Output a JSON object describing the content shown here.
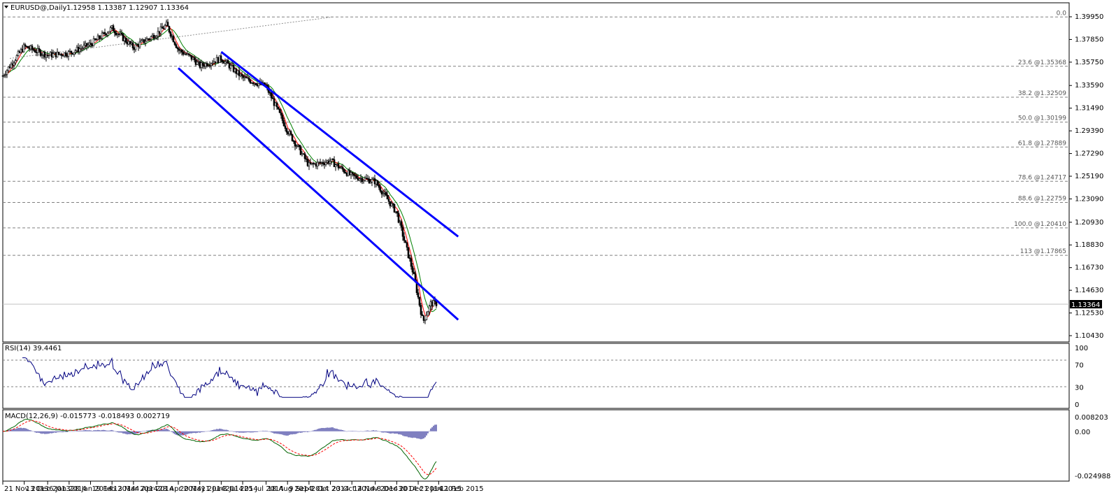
{
  "header": {
    "symbol_label": "EURUSD@,Daily",
    "ohlc": "1.12958 1.13387 1.12907 1.13364"
  },
  "price_panel": {
    "current_price_label": "1.13364",
    "price_axis_labels": [
      "1.39950",
      "1.37850",
      "1.35750",
      "1.33590",
      "1.31490",
      "1.29390",
      "1.27290",
      "1.25190",
      "1.23090",
      "1.20930",
      "1.18830",
      "1.16730",
      "1.14630",
      "1.12530",
      "1.10430"
    ]
  },
  "fibonacci_levels": [
    {
      "ratio": "0.0",
      "price": "",
      "label": "0.0"
    },
    {
      "ratio": "23.6",
      "price": "1.35368",
      "label": "23.6    @1.35368"
    },
    {
      "ratio": "38.2",
      "price": "1.32509",
      "label": "38.2    @1.32509"
    },
    {
      "ratio": "50.0",
      "price": "1.30199",
      "label": "50.0    @1.30199"
    },
    {
      "ratio": "61.8",
      "price": "1.27889",
      "label": "61.8    @1.27889"
    },
    {
      "ratio": "78.6",
      "price": "1.24717",
      "label": "78.6    @1.24717"
    },
    {
      "ratio": "88.6",
      "price": "1.22759",
      "label": "88.6    @1.22759"
    },
    {
      "ratio": "100.0",
      "price": "1.20410",
      "label": "100.0    @1.20410"
    },
    {
      "ratio": "113",
      "price": "1.17865",
      "label": "113    @1.17865"
    }
  ],
  "rsi_panel": {
    "title": "RSI(14) 39.4461",
    "axis_labels": [
      "100",
      "70",
      "30",
      "0"
    ]
  },
  "macd_panel": {
    "title": "MACD(12,26,9) -0.015773 -0.018493 0.002719",
    "axis_labels": [
      "0.008203",
      "0.00",
      "-0.024988"
    ]
  },
  "time_axis_labels": [
    "21 Nov 2013",
    "13 Dec 2013",
    "6 Jan 2014",
    "28 Jan 2014",
    "19 Feb 2014",
    "13 Mar 2014",
    "4 Apr 2014",
    "28 Apr 2014",
    "20 May 2014",
    "11 Jun 2014",
    "3 Jul 2014",
    "25 Jul 2014",
    "18 Aug 2014",
    "9 Sep 2014",
    "1 Oct 2014",
    "23 Oct 2014",
    "14 Nov 2014",
    "8 Dec 2014",
    "30 Dec 2014",
    "21 Jan 2015",
    "11 Feb 2015"
  ],
  "colors": {
    "candles": "#000000",
    "ma_fast": "#ff0000",
    "ma_slow": "#008000",
    "ma_overlap": "#e0c000",
    "channel": "#0000ff",
    "rsi_line": "#000080",
    "macd_main": "#006400",
    "macd_signal": "#ff0000",
    "macd_hist": "#000080",
    "grid": "#808080",
    "fib": "#808080"
  },
  "chart_data": [
    {
      "type": "line",
      "name": "EURUSD daily price",
      "xlabel": "",
      "ylabel": "",
      "ylim": [
        1.1043,
        1.3995
      ],
      "points": [
        [
          "2013-11-21",
          1.345
        ],
        [
          "2013-12-13",
          1.372
        ],
        [
          "2014-01-06",
          1.364
        ],
        [
          "2014-01-28",
          1.366
        ],
        [
          "2014-02-19",
          1.374
        ],
        [
          "2014-03-13",
          1.389
        ],
        [
          "2014-04-04",
          1.371
        ],
        [
          "2014-04-28",
          1.384
        ],
        [
          "2014-05-08",
          1.392
        ],
        [
          "2014-05-20",
          1.369
        ],
        [
          "2014-06-05",
          1.36
        ],
        [
          "2014-06-11",
          1.354
        ],
        [
          "2014-07-03",
          1.361
        ],
        [
          "2014-07-25",
          1.343
        ],
        [
          "2014-08-18",
          1.335
        ],
        [
          "2014-09-09",
          1.294
        ],
        [
          "2014-10-01",
          1.262
        ],
        [
          "2014-10-23",
          1.266
        ],
        [
          "2014-11-14",
          1.252
        ],
        [
          "2014-12-08",
          1.247
        ],
        [
          "2014-12-30",
          1.218
        ],
        [
          "2015-01-16",
          1.162
        ],
        [
          "2015-01-26",
          1.117
        ],
        [
          "2015-02-03",
          1.134
        ],
        [
          "2015-02-10",
          1.134
        ]
      ],
      "channel": {
        "upper": [
          [
            "2014-07-03",
            1.367
          ],
          [
            "2015-03-03",
            1.196
          ]
        ],
        "lower": [
          [
            "2014-05-20",
            1.352
          ],
          [
            "2015-03-03",
            1.119
          ]
        ]
      }
    },
    {
      "type": "line",
      "name": "RSI(14)",
      "xlabel": "",
      "ylabel": "",
      "ylim": [
        0,
        100
      ],
      "levels": [
        70,
        30
      ],
      "last_value": 39.4461
    },
    {
      "type": "bar",
      "name": "MACD(12,26,9)",
      "xlabel": "",
      "ylabel": "",
      "ylim": [
        -0.024988,
        0.008203
      ],
      "values": {
        "main": -0.015773,
        "signal": -0.018493,
        "histogram": 0.002719
      }
    }
  ]
}
